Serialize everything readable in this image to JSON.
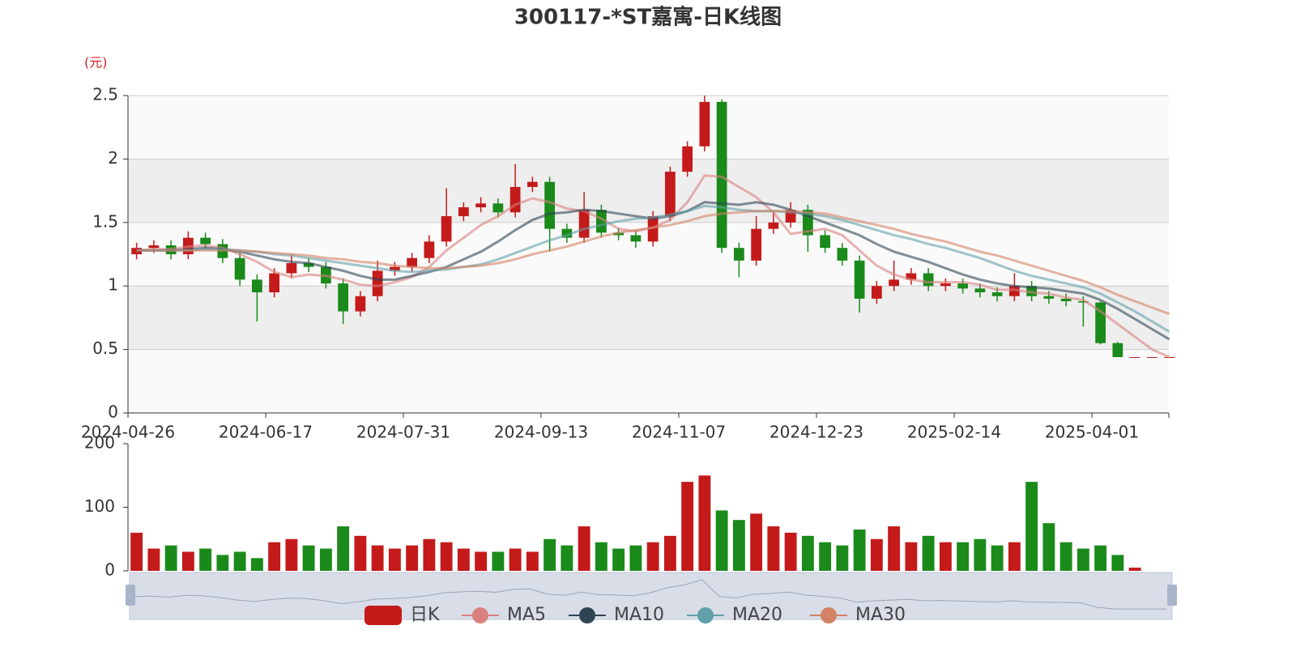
{
  "chart_data": {
    "type": "candlestick",
    "title": "300117-*ST嘉寓-日K线图",
    "y_unit": "(元)",
    "categories": [
      "2024-04-26",
      null,
      null,
      null,
      null,
      null,
      null,
      null,
      "2024-06-17",
      null,
      null,
      null,
      null,
      null,
      null,
      null,
      "2024-07-31",
      null,
      null,
      null,
      null,
      null,
      null,
      null,
      "2024-09-13",
      null,
      null,
      null,
      null,
      null,
      null,
      null,
      "2024-11-07",
      null,
      null,
      null,
      null,
      null,
      null,
      null,
      "2024-12-23",
      null,
      null,
      null,
      null,
      null,
      null,
      null,
      "2025-02-14",
      null,
      null,
      null,
      null,
      null,
      null,
      null,
      "2025-04-01",
      null,
      null,
      null,
      null
    ],
    "ylim": [
      0,
      2.5
    ],
    "yticks": [
      0,
      0.5,
      1,
      1.5,
      2,
      2.5
    ],
    "grid": true,
    "up_color": "#c41a1a",
    "down_color": "#1a8a1a",
    "series": [
      {
        "name": "日K",
        "color": "#c41a1a",
        "open": [
          1.25,
          1.3,
          1.32,
          1.25,
          1.38,
          1.33,
          1.22,
          1.05,
          0.95,
          1.1,
          1.18,
          1.15,
          1.02,
          0.8,
          0.92,
          1.12,
          1.15,
          1.22,
          1.35,
          1.55,
          1.62,
          1.65,
          1.58,
          1.78,
          1.82,
          1.45,
          1.38,
          1.6,
          1.42,
          1.4,
          1.35,
          1.55,
          1.9,
          2.1,
          2.45,
          1.3,
          1.2,
          1.45,
          1.5,
          1.6,
          1.4,
          1.3,
          1.2,
          0.9,
          1.0,
          1.05,
          1.1,
          1.0,
          1.02,
          0.98,
          0.95,
          0.92,
          1.0,
          0.92,
          0.9,
          0.88,
          0.87,
          0.55,
          0.44,
          0.44,
          0.44
        ],
        "close": [
          1.3,
          1.32,
          1.25,
          1.38,
          1.33,
          1.22,
          1.05,
          0.95,
          1.1,
          1.18,
          1.15,
          1.02,
          0.8,
          0.92,
          1.12,
          1.15,
          1.22,
          1.35,
          1.55,
          1.62,
          1.65,
          1.58,
          1.78,
          1.82,
          1.45,
          1.38,
          1.6,
          1.42,
          1.4,
          1.35,
          1.55,
          1.9,
          2.1,
          2.45,
          1.3,
          1.2,
          1.45,
          1.5,
          1.6,
          1.4,
          1.3,
          1.2,
          0.9,
          1.0,
          1.05,
          1.1,
          1.0,
          1.02,
          0.98,
          0.95,
          0.92,
          1.0,
          0.92,
          0.9,
          0.88,
          0.87,
          0.55,
          0.44,
          0.44,
          0.44,
          0.44
        ],
        "low": [
          1.21,
          1.26,
          1.21,
          1.21,
          1.29,
          1.18,
          1.0,
          0.72,
          0.91,
          1.06,
          1.11,
          0.98,
          0.7,
          0.76,
          0.88,
          1.08,
          1.11,
          1.18,
          1.31,
          1.51,
          1.58,
          1.54,
          1.54,
          1.74,
          1.27,
          1.34,
          1.34,
          1.38,
          1.36,
          1.3,
          1.31,
          1.51,
          1.86,
          2.06,
          1.26,
          1.07,
          1.16,
          1.41,
          1.46,
          1.27,
          1.26,
          1.16,
          0.79,
          0.86,
          0.96,
          1.01,
          0.96,
          0.96,
          0.94,
          0.91,
          0.88,
          0.88,
          0.88,
          0.86,
          0.84,
          0.68,
          0.54,
          0.44,
          0.44,
          0.44,
          0.44
        ],
        "high": [
          1.34,
          1.36,
          1.36,
          1.43,
          1.42,
          1.37,
          1.26,
          1.09,
          1.14,
          1.25,
          1.22,
          1.19,
          1.06,
          0.96,
          1.2,
          1.19,
          1.26,
          1.4,
          1.77,
          1.66,
          1.7,
          1.69,
          1.96,
          1.86,
          1.86,
          1.49,
          1.74,
          1.64,
          1.46,
          1.44,
          1.59,
          1.94,
          2.14,
          2.5,
          2.47,
          1.34,
          1.55,
          1.58,
          1.66,
          1.64,
          1.44,
          1.34,
          1.24,
          1.04,
          1.2,
          1.14,
          1.14,
          1.06,
          1.06,
          1.02,
          0.99,
          1.1,
          1.04,
          0.96,
          0.94,
          0.92,
          0.88,
          0.56,
          0.44,
          0.44,
          0.44
        ]
      },
      {
        "name": "MA5",
        "color": "#d9817e",
        "values": [
          1.28,
          1.29,
          1.29,
          1.31,
          1.32,
          1.3,
          1.25,
          1.19,
          1.11,
          1.07,
          1.09,
          1.08,
          1.05,
          1.01,
          1.0,
          1.03,
          1.07,
          1.15,
          1.28,
          1.38,
          1.48,
          1.55,
          1.64,
          1.69,
          1.66,
          1.61,
          1.59,
          1.53,
          1.45,
          1.43,
          1.46,
          1.52,
          1.66,
          1.87,
          1.86,
          1.78,
          1.7,
          1.58,
          1.41,
          1.43,
          1.45,
          1.4,
          1.28,
          1.16,
          1.09,
          1.05,
          1.03,
          1.03,
          1.03,
          1.01,
          0.97,
          0.97,
          0.95,
          0.94,
          0.91,
          0.89,
          0.8,
          0.7,
          0.6,
          0.5,
          0.44
        ]
      },
      {
        "name": "MA10",
        "color": "#2f4554",
        "values": [
          1.28,
          1.28,
          1.28,
          1.29,
          1.3,
          1.29,
          1.27,
          1.24,
          1.21,
          1.19,
          1.18,
          1.15,
          1.12,
          1.08,
          1.05,
          1.05,
          1.08,
          1.11,
          1.15,
          1.21,
          1.27,
          1.35,
          1.44,
          1.52,
          1.57,
          1.58,
          1.6,
          1.59,
          1.57,
          1.55,
          1.53,
          1.55,
          1.59,
          1.66,
          1.65,
          1.64,
          1.66,
          1.64,
          1.6,
          1.55,
          1.5,
          1.45,
          1.4,
          1.33,
          1.27,
          1.23,
          1.19,
          1.14,
          1.09,
          1.05,
          1.02,
          1.0,
          0.99,
          0.98,
          0.96,
          0.94,
          0.89,
          0.82,
          0.74,
          0.66,
          0.58
        ]
      },
      {
        "name": "MA20",
        "color": "#61a0a8",
        "values": [
          1.28,
          1.28,
          1.28,
          1.28,
          1.29,
          1.29,
          1.28,
          1.27,
          1.25,
          1.24,
          1.22,
          1.2,
          1.18,
          1.16,
          1.14,
          1.12,
          1.11,
          1.12,
          1.13,
          1.15,
          1.17,
          1.21,
          1.26,
          1.31,
          1.36,
          1.4,
          1.45,
          1.48,
          1.51,
          1.53,
          1.54,
          1.56,
          1.59,
          1.63,
          1.62,
          1.6,
          1.59,
          1.59,
          1.58,
          1.57,
          1.55,
          1.52,
          1.48,
          1.44,
          1.4,
          1.37,
          1.33,
          1.3,
          1.26,
          1.22,
          1.17,
          1.12,
          1.08,
          1.05,
          1.02,
          0.99,
          0.94,
          0.87,
          0.8,
          0.72,
          0.64
        ]
      },
      {
        "name": "MA30",
        "color": "#d48265",
        "values": [
          1.28,
          1.28,
          1.28,
          1.28,
          1.28,
          1.28,
          1.28,
          1.27,
          1.26,
          1.25,
          1.24,
          1.22,
          1.21,
          1.19,
          1.18,
          1.16,
          1.15,
          1.14,
          1.14,
          1.15,
          1.16,
          1.18,
          1.21,
          1.25,
          1.28,
          1.31,
          1.35,
          1.39,
          1.42,
          1.44,
          1.46,
          1.48,
          1.51,
          1.55,
          1.57,
          1.58,
          1.59,
          1.59,
          1.59,
          1.58,
          1.57,
          1.54,
          1.51,
          1.48,
          1.45,
          1.41,
          1.38,
          1.35,
          1.31,
          1.27,
          1.24,
          1.2,
          1.16,
          1.12,
          1.08,
          1.04,
          0.99,
          0.93,
          0.88,
          0.83,
          0.78
        ]
      }
    ],
    "volume": {
      "ylim": [
        0,
        200
      ],
      "yticks": [
        0,
        100,
        200
      ],
      "values": [
        60,
        35,
        40,
        30,
        35,
        25,
        30,
        20,
        45,
        50,
        40,
        35,
        70,
        55,
        40,
        35,
        40,
        50,
        45,
        35,
        30,
        30,
        35,
        30,
        50,
        40,
        70,
        45,
        35,
        40,
        45,
        55,
        140,
        150,
        95,
        80,
        90,
        70,
        60,
        55,
        45,
        40,
        65,
        50,
        70,
        45,
        55,
        45,
        45,
        50,
        40,
        45,
        140,
        75,
        45,
        35,
        40,
        25,
        5,
        0,
        0
      ]
    }
  }
}
